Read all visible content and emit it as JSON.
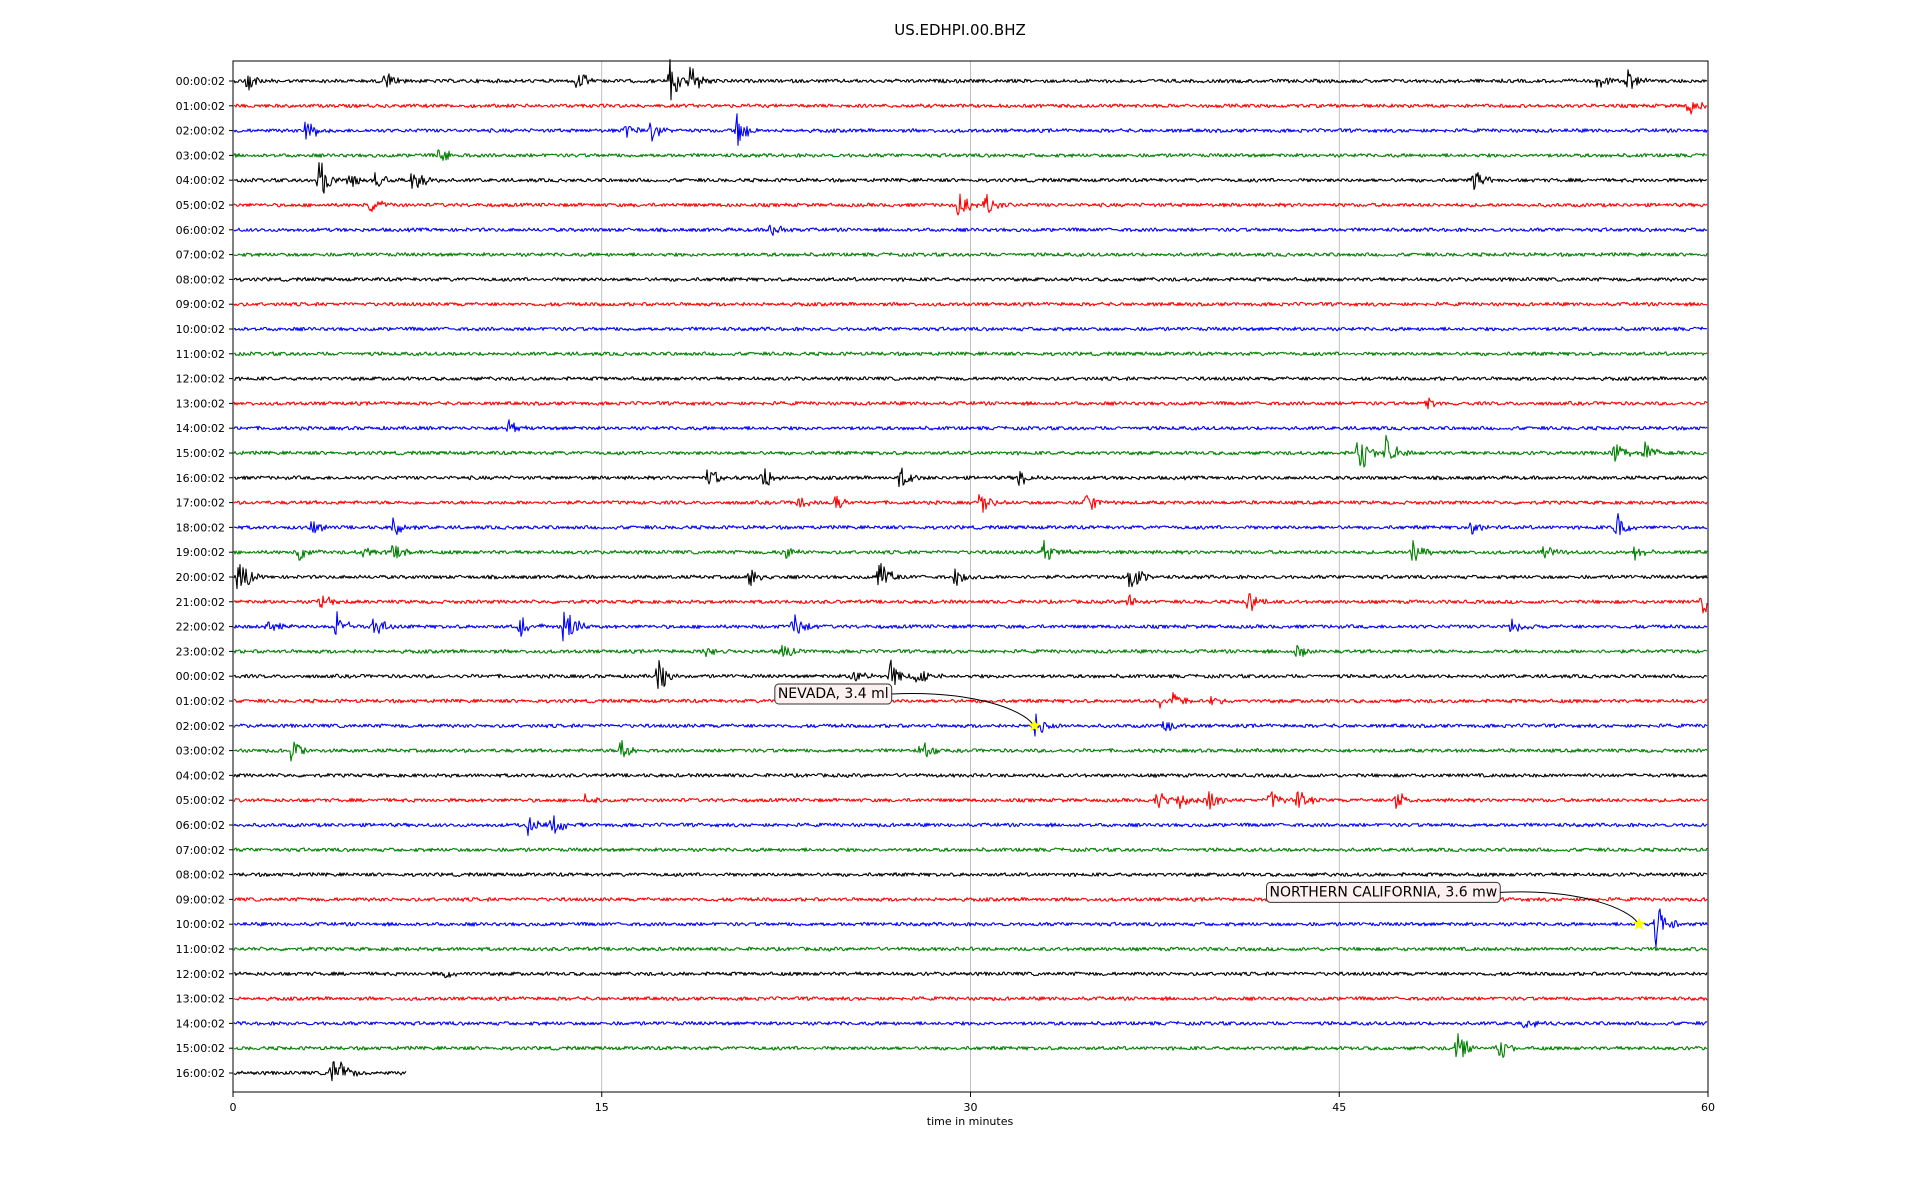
{
  "chart_data": {
    "type": "line",
    "title": "US.EDHPI.00.BHZ",
    "xlabel": "time in minutes",
    "xlim": [
      0,
      60
    ],
    "x_ticks": [
      0,
      15,
      30,
      45,
      60
    ],
    "grid_x": true,
    "colors": [
      "#000000",
      "#ff0000",
      "#0000ff",
      "#008000"
    ],
    "row_labels": [
      "00:00:02",
      "01:00:02",
      "02:00:02",
      "03:00:02",
      "04:00:02",
      "05:00:02",
      "06:00:02",
      "07:00:02",
      "08:00:02",
      "09:00:02",
      "10:00:02",
      "11:00:02",
      "12:00:02",
      "13:00:02",
      "14:00:02",
      "15:00:02",
      "16:00:02",
      "17:00:02",
      "18:00:02",
      "19:00:02",
      "20:00:02",
      "21:00:02",
      "22:00:02",
      "23:00:02",
      "00:00:02",
      "01:00:02",
      "02:00:02",
      "03:00:02",
      "04:00:02",
      "05:00:02",
      "06:00:02",
      "07:00:02",
      "08:00:02",
      "09:00:02",
      "10:00:02",
      "11:00:02",
      "12:00:02",
      "13:00:02",
      "14:00:02",
      "15:00:02",
      "16:00:02"
    ],
    "last_row_end_minute": 7.1,
    "bursts": [
      {
        "row": 0,
        "t": 0.6,
        "amp": 0.5
      },
      {
        "row": 0,
        "t": 6.2,
        "amp": 0.4
      },
      {
        "row": 0,
        "t": 14,
        "amp": 0.5
      },
      {
        "row": 0,
        "t": 17.8,
        "amp": 1.2
      },
      {
        "row": 0,
        "t": 18.6,
        "amp": 0.8
      },
      {
        "row": 0,
        "t": 55.5,
        "amp": 0.5
      },
      {
        "row": 0,
        "t": 56.7,
        "amp": 0.6
      },
      {
        "row": 1,
        "t": 59.2,
        "amp": 0.5
      },
      {
        "row": 2,
        "t": 3,
        "amp": 0.6
      },
      {
        "row": 2,
        "t": 16,
        "amp": 0.5
      },
      {
        "row": 2,
        "t": 17,
        "amp": 0.5
      },
      {
        "row": 2,
        "t": 20.5,
        "amp": 0.8
      },
      {
        "row": 3,
        "t": 8.4,
        "amp": 0.5
      },
      {
        "row": 4,
        "t": 3.5,
        "amp": 1.0
      },
      {
        "row": 4,
        "t": 4.7,
        "amp": 0.5
      },
      {
        "row": 4,
        "t": 5.8,
        "amp": 0.5
      },
      {
        "row": 4,
        "t": 7.3,
        "amp": 0.8
      },
      {
        "row": 4,
        "t": 50.5,
        "amp": 0.5
      },
      {
        "row": 5,
        "t": 5.6,
        "amp": 0.4
      },
      {
        "row": 5,
        "t": 29.5,
        "amp": 0.7
      },
      {
        "row": 5,
        "t": 30.6,
        "amp": 0.7
      },
      {
        "row": 6,
        "t": 21.9,
        "amp": 0.5
      },
      {
        "row": 13,
        "t": 48.6,
        "amp": 0.3
      },
      {
        "row": 14,
        "t": 11.2,
        "amp": 0.4
      },
      {
        "row": 15,
        "t": 45.8,
        "amp": 1.1
      },
      {
        "row": 15,
        "t": 46.9,
        "amp": 0.8
      },
      {
        "row": 15,
        "t": 56.2,
        "amp": 0.5
      },
      {
        "row": 15,
        "t": 57.4,
        "amp": 0.5
      },
      {
        "row": 16,
        "t": 19.3,
        "amp": 0.6
      },
      {
        "row": 16,
        "t": 21.5,
        "amp": 0.8
      },
      {
        "row": 16,
        "t": 27.1,
        "amp": 0.6
      },
      {
        "row": 16,
        "t": 32,
        "amp": 0.4
      },
      {
        "row": 17,
        "t": 23,
        "amp": 0.5
      },
      {
        "row": 17,
        "t": 24.5,
        "amp": 0.4
      },
      {
        "row": 17,
        "t": 30.4,
        "amp": 0.7
      },
      {
        "row": 17,
        "t": 34.7,
        "amp": 0.6
      },
      {
        "row": 18,
        "t": 3.2,
        "amp": 0.4
      },
      {
        "row": 18,
        "t": 6.5,
        "amp": 0.6
      },
      {
        "row": 18,
        "t": 50.3,
        "amp": 0.5
      },
      {
        "row": 18,
        "t": 56.3,
        "amp": 0.7
      },
      {
        "row": 19,
        "t": 2.7,
        "amp": 0.4
      },
      {
        "row": 19,
        "t": 5.3,
        "amp": 0.4
      },
      {
        "row": 19,
        "t": 6.5,
        "amp": 0.5
      },
      {
        "row": 19,
        "t": 22.4,
        "amp": 0.4
      },
      {
        "row": 19,
        "t": 33,
        "amp": 0.6
      },
      {
        "row": 19,
        "t": 48,
        "amp": 0.6
      },
      {
        "row": 19,
        "t": 53.3,
        "amp": 0.4
      },
      {
        "row": 19,
        "t": 57,
        "amp": 0.4
      },
      {
        "row": 20,
        "t": 0.2,
        "amp": 1.0
      },
      {
        "row": 20,
        "t": 21,
        "amp": 0.5
      },
      {
        "row": 20,
        "t": 26.3,
        "amp": 0.9
      },
      {
        "row": 20,
        "t": 29.4,
        "amp": 0.5
      },
      {
        "row": 20,
        "t": 36.5,
        "amp": 0.8
      },
      {
        "row": 21,
        "t": 3.5,
        "amp": 0.5
      },
      {
        "row": 21,
        "t": 36.4,
        "amp": 0.3
      },
      {
        "row": 21,
        "t": 41.3,
        "amp": 0.6
      },
      {
        "row": 21,
        "t": 59.8,
        "amp": 0.6
      },
      {
        "row": 22,
        "t": 1.4,
        "amp": 0.5
      },
      {
        "row": 22,
        "t": 4.2,
        "amp": 0.7
      },
      {
        "row": 22,
        "t": 5.7,
        "amp": 0.6
      },
      {
        "row": 22,
        "t": 11.7,
        "amp": 0.5
      },
      {
        "row": 22,
        "t": 13.5,
        "amp": 1.2
      },
      {
        "row": 22,
        "t": 22.8,
        "amp": 0.7
      },
      {
        "row": 22,
        "t": 52,
        "amp": 0.4
      },
      {
        "row": 23,
        "t": 19.2,
        "amp": 0.3
      },
      {
        "row": 23,
        "t": 22.3,
        "amp": 0.4
      },
      {
        "row": 23,
        "t": 43.3,
        "amp": 0.5
      },
      {
        "row": 24,
        "t": 17.3,
        "amp": 0.9
      },
      {
        "row": 24,
        "t": 25.2,
        "amp": 0.4
      },
      {
        "row": 24,
        "t": 26.7,
        "amp": 0.8
      },
      {
        "row": 24,
        "t": 27.8,
        "amp": 0.6
      },
      {
        "row": 25,
        "t": 37.7,
        "amp": 0.4
      },
      {
        "row": 25,
        "t": 38.3,
        "amp": 0.6
      },
      {
        "row": 25,
        "t": 39.8,
        "amp": 0.3
      },
      {
        "row": 26,
        "t": 32.6,
        "amp": 0.6
      },
      {
        "row": 26,
        "t": 37.9,
        "amp": 0.3
      },
      {
        "row": 27,
        "t": 2.4,
        "amp": 0.6
      },
      {
        "row": 27,
        "t": 15.8,
        "amp": 0.5
      },
      {
        "row": 27,
        "t": 28,
        "amp": 0.5
      },
      {
        "row": 29,
        "t": 14.3,
        "amp": 0.3
      },
      {
        "row": 29,
        "t": 37.6,
        "amp": 0.6
      },
      {
        "row": 29,
        "t": 38.5,
        "amp": 0.6
      },
      {
        "row": 29,
        "t": 39.6,
        "amp": 0.8
      },
      {
        "row": 29,
        "t": 42.2,
        "amp": 0.5
      },
      {
        "row": 29,
        "t": 43.3,
        "amp": 0.6
      },
      {
        "row": 29,
        "t": 47.3,
        "amp": 0.5
      },
      {
        "row": 30,
        "t": 12,
        "amp": 0.5
      },
      {
        "row": 30,
        "t": 13,
        "amp": 0.5
      },
      {
        "row": 34,
        "t": 57.9,
        "amp": 1.2
      },
      {
        "row": 36,
        "t": 8.6,
        "amp": 0.3
      },
      {
        "row": 38,
        "t": 52.5,
        "amp": 0.4
      },
      {
        "row": 39,
        "t": 49.8,
        "amp": 0.8
      },
      {
        "row": 39,
        "t": 51.5,
        "amp": 0.6
      },
      {
        "row": 40,
        "t": 4,
        "amp": 0.7
      },
      {
        "row": 40,
        "t": 4.4,
        "amp": 0.5
      }
    ],
    "events": [
      {
        "label": "NEVADA, 3.4 ml",
        "row": 26,
        "minute": 32.6,
        "label_row": 25,
        "label_minute": 22.0
      },
      {
        "label": "NORTHERN CALIFORNIA, 3.6 mw",
        "row": 34,
        "minute": 57.2,
        "label_row": 33,
        "label_minute": 42.0
      }
    ],
    "marker_color": "#ffff00"
  }
}
